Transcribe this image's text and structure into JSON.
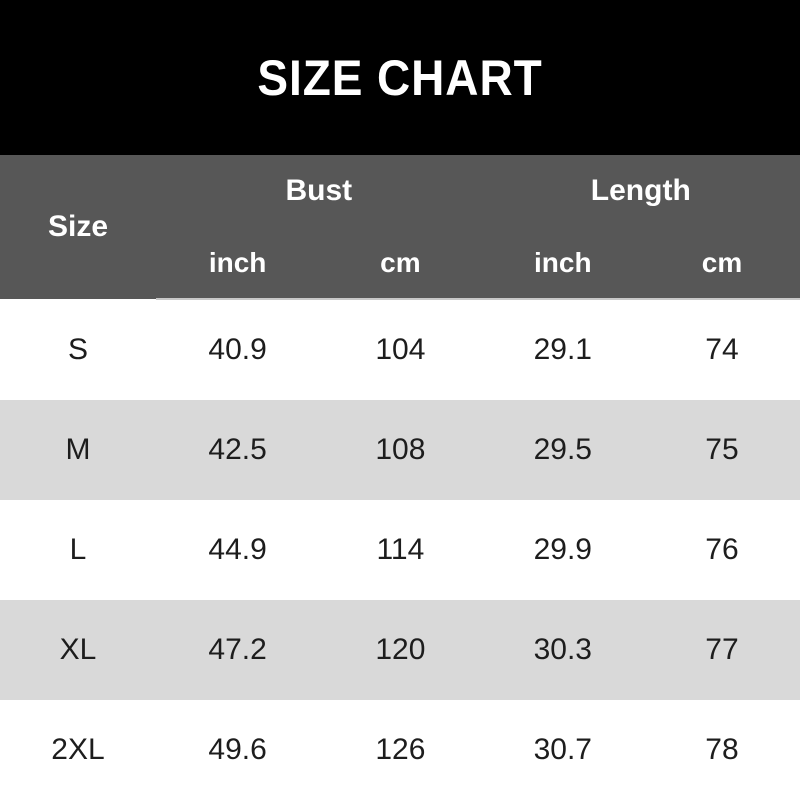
{
  "title": "SIZE CHART",
  "colors": {
    "banner_bg": "#000000",
    "banner_text": "#ffffff",
    "header_bg": "#575757",
    "header_text": "#ffffff",
    "row_bg": "#ffffff",
    "row_alt_bg": "#d9d9d9",
    "data_text": "#1d1d1d",
    "header_divider": "#c8c8c8"
  },
  "table": {
    "size_header": "Size",
    "groups": [
      {
        "label": "Bust",
        "sub": [
          "inch",
          "cm"
        ]
      },
      {
        "label": "Length",
        "sub": [
          "inch",
          "cm"
        ]
      }
    ],
    "rows": [
      {
        "size": "S",
        "bust_inch": "40.9",
        "bust_cm": "104",
        "length_inch": "29.1",
        "length_cm": "74"
      },
      {
        "size": "M",
        "bust_inch": "42.5",
        "bust_cm": "108",
        "length_inch": "29.5",
        "length_cm": "75"
      },
      {
        "size": "L",
        "bust_inch": "44.9",
        "bust_cm": "114",
        "length_inch": "29.9",
        "length_cm": "76"
      },
      {
        "size": "XL",
        "bust_inch": "47.2",
        "bust_cm": "120",
        "length_inch": "30.3",
        "length_cm": "77"
      },
      {
        "size": "2XL",
        "bust_inch": "49.6",
        "bust_cm": "126",
        "length_inch": "30.7",
        "length_cm": "78"
      }
    ]
  },
  "chart_data": {
    "type": "table",
    "title": "SIZE CHART",
    "columns": [
      "Size",
      "Bust inch",
      "Bust cm",
      "Length inch",
      "Length cm"
    ],
    "rows": [
      [
        "S",
        40.9,
        104,
        29.1,
        74
      ],
      [
        "M",
        42.5,
        108,
        29.5,
        75
      ],
      [
        "L",
        44.9,
        114,
        29.9,
        76
      ],
      [
        "XL",
        47.2,
        120,
        30.3,
        77
      ],
      [
        "2XL",
        49.6,
        126,
        30.7,
        78
      ]
    ]
  }
}
